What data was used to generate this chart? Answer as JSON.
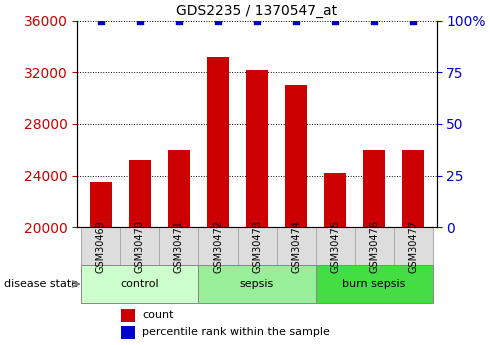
{
  "title": "GDS2235 / 1370547_at",
  "samples": [
    "GSM30469",
    "GSM30470",
    "GSM30471",
    "GSM30472",
    "GSM30473",
    "GSM30474",
    "GSM30475",
    "GSM30476",
    "GSM30477"
  ],
  "counts": [
    23500,
    25200,
    26000,
    33200,
    32200,
    31000,
    24200,
    26000,
    26000
  ],
  "percentile_ranks": [
    100,
    100,
    100,
    100,
    100,
    100,
    100,
    100,
    100
  ],
  "groups": [
    {
      "label": "control",
      "indices": [
        0,
        1,
        2
      ],
      "color": "#ccffcc"
    },
    {
      "label": "sepsis",
      "indices": [
        3,
        4,
        5
      ],
      "color": "#99ee99"
    },
    {
      "label": "burn sepsis",
      "indices": [
        6,
        7,
        8
      ],
      "color": "#44dd44"
    }
  ],
  "bar_color": "#cc0000",
  "percentile_color": "#0000cc",
  "ylim_left": [
    20000,
    36000
  ],
  "ylim_right": [
    0,
    100
  ],
  "yticks_left": [
    20000,
    24000,
    28000,
    32000,
    36000
  ],
  "yticks_right": [
    0,
    25,
    50,
    75,
    100
  ],
  "legend_count_label": "count",
  "legend_pct_label": "percentile rank within the sample",
  "disease_state_label": "disease state",
  "sample_box_color": "#dddddd",
  "sample_box_edge_color": "#aaaaaa"
}
